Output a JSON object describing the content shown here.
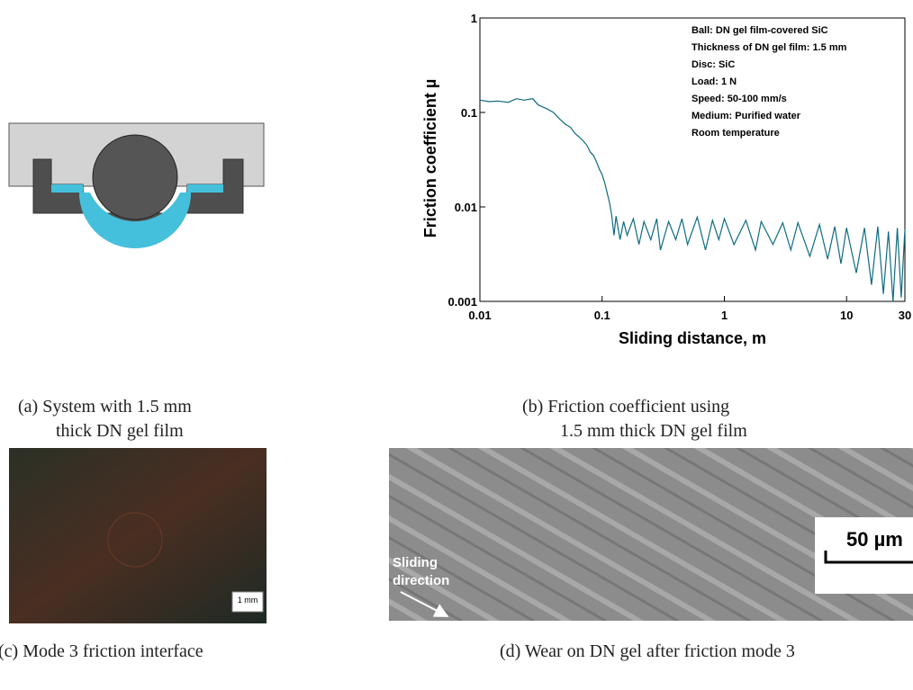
{
  "chart_data": {
    "type": "line",
    "ylabel": "Friction coefficient  µ",
    "xlabel": "Sliding distance, m",
    "log_x": true,
    "log_y": true,
    "xlim": [
      0.01,
      30
    ],
    "ylim": [
      0.001,
      1
    ],
    "xticks": [
      0.01,
      0.1,
      1,
      10,
      30
    ],
    "yticks": [
      0.001,
      0.01,
      0.1,
      1
    ],
    "annotations": [
      "Ball: DN gel film-covered SiC",
      "Thickness of DN gel film: 1.5 mm",
      "Disc: SiC",
      "Load: 1 N",
      "Speed: 50-100 mm/s",
      "Medium: Purified water",
      "Room temperature"
    ],
    "x": [
      0.01,
      0.012,
      0.014,
      0.017,
      0.02,
      0.023,
      0.027,
      0.03,
      0.035,
      0.04,
      0.045,
      0.05,
      0.055,
      0.06,
      0.065,
      0.07,
      0.075,
      0.08,
      0.085,
      0.09,
      0.095,
      0.1,
      0.105,
      0.11,
      0.115,
      0.12,
      0.125,
      0.13,
      0.14,
      0.15,
      0.16,
      0.18,
      0.2,
      0.22,
      0.25,
      0.28,
      0.3,
      0.35,
      0.4,
      0.45,
      0.5,
      0.6,
      0.7,
      0.8,
      0.9,
      1,
      1.2,
      1.5,
      1.8,
      2,
      2.5,
      3,
      3.5,
      4,
      5,
      6,
      7,
      8,
      9,
      10,
      12,
      14,
      16,
      18,
      20,
      22,
      24,
      26,
      28,
      30
    ],
    "series": [
      {
        "color": "#0e6b80",
        "values": [
          0.135,
          0.13,
          0.132,
          0.128,
          0.14,
          0.135,
          0.14,
          0.12,
          0.11,
          0.1,
          0.085,
          0.075,
          0.07,
          0.06,
          0.055,
          0.05,
          0.045,
          0.038,
          0.035,
          0.03,
          0.025,
          0.022,
          0.018,
          0.014,
          0.011,
          0.008,
          0.005,
          0.008,
          0.0045,
          0.007,
          0.005,
          0.0075,
          0.004,
          0.007,
          0.0045,
          0.0075,
          0.0035,
          0.007,
          0.0045,
          0.0075,
          0.004,
          0.0078,
          0.0035,
          0.0072,
          0.0045,
          0.0075,
          0.004,
          0.0072,
          0.0035,
          0.007,
          0.004,
          0.0068,
          0.0035,
          0.0068,
          0.003,
          0.0065,
          0.0028,
          0.0062,
          0.0025,
          0.006,
          0.002,
          0.006,
          0.0015,
          0.0062,
          0.0012,
          0.0055,
          0.001,
          0.006,
          0.0011,
          0.0058
        ]
      }
    ]
  },
  "panels": {
    "a": {
      "caption": [
        "(a)  System with 1.5 mm",
        "thick DN gel film"
      ]
    },
    "b": {
      "caption": [
        "(b)  Friction coefficient using",
        "1.5 mm thick DN gel film"
      ]
    },
    "c": {
      "scale": "1 mm",
      "caption": "(c) Mode 3 friction interface"
    },
    "d": {
      "direction": [
        "Sliding",
        "direction"
      ],
      "scale": "50 µm",
      "caption": "(d) Wear on DN gel after friction mode 3"
    }
  }
}
